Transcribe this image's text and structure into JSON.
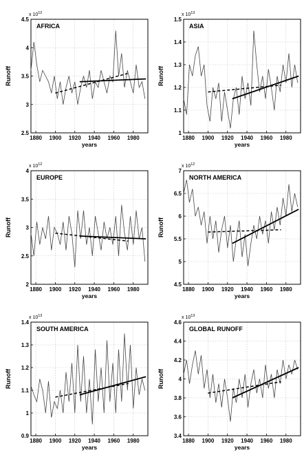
{
  "chart_data": [
    {
      "type": "line",
      "title": "AFRICA",
      "xlabel": "years",
      "ylabel": "Runoff",
      "multiplier": "x 10",
      "exponent": "12",
      "xlim": [
        1875,
        1995
      ],
      "ylim": [
        2.5,
        4.5
      ],
      "xticks": [
        1880,
        1900,
        1920,
        1940,
        1960,
        1980
      ],
      "yticks": [
        "2.5",
        "3",
        "3.5",
        "4",
        "4.5"
      ],
      "series_points": [
        [
          1875,
          3.6
        ],
        [
          1878,
          4.1
        ],
        [
          1881,
          3.7
        ],
        [
          1884,
          3.4
        ],
        [
          1887,
          3.6
        ],
        [
          1890,
          3.5
        ],
        [
          1893,
          3.4
        ],
        [
          1896,
          3.2
        ],
        [
          1899,
          3.5
        ],
        [
          1902,
          3.1
        ],
        [
          1905,
          3.4
        ],
        [
          1908,
          3.0
        ],
        [
          1911,
          3.3
        ],
        [
          1914,
          3.5
        ],
        [
          1917,
          3.2
        ],
        [
          1920,
          3.4
        ],
        [
          1923,
          3.0
        ],
        [
          1926,
          3.3
        ],
        [
          1929,
          3.5
        ],
        [
          1932,
          3.3
        ],
        [
          1935,
          3.6
        ],
        [
          1938,
          3.1
        ],
        [
          1941,
          3.4
        ],
        [
          1944,
          3.3
        ],
        [
          1947,
          3.6
        ],
        [
          1950,
          3.4
        ],
        [
          1953,
          3.2
        ],
        [
          1956,
          3.5
        ],
        [
          1959,
          3.4
        ],
        [
          1962,
          4.3
        ],
        [
          1965,
          3.5
        ],
        [
          1968,
          3.9
        ],
        [
          1971,
          3.3
        ],
        [
          1974,
          3.6
        ],
        [
          1977,
          3.4
        ],
        [
          1980,
          3.2
        ],
        [
          1983,
          3.7
        ],
        [
          1986,
          3.3
        ],
        [
          1989,
          3.4
        ],
        [
          1992,
          3.1
        ]
      ],
      "trend_dashed": [
        [
          1900,
          3.2
        ],
        [
          1975,
          3.55
        ]
      ],
      "trend_solid": [
        [
          1925,
          3.4
        ],
        [
          1993,
          3.45
        ]
      ]
    },
    {
      "type": "line",
      "title": "ASIA",
      "xlabel": "years",
      "ylabel": "Runoff",
      "multiplier": "x 10",
      "exponent": "13",
      "xlim": [
        1875,
        1995
      ],
      "ylim": [
        1,
        1.5
      ],
      "xticks": [
        1880,
        1900,
        1920,
        1940,
        1960,
        1980
      ],
      "yticks": [
        "1",
        "1.1",
        "1.2",
        "1.3",
        "1.4",
        "1.5"
      ],
      "series_points": [
        [
          1875,
          1.15
        ],
        [
          1878,
          1.08
        ],
        [
          1881,
          1.3
        ],
        [
          1884,
          1.25
        ],
        [
          1887,
          1.34
        ],
        [
          1890,
          1.38
        ],
        [
          1893,
          1.25
        ],
        [
          1896,
          1.3
        ],
        [
          1899,
          1.12
        ],
        [
          1902,
          1.05
        ],
        [
          1905,
          1.2
        ],
        [
          1908,
          1.15
        ],
        [
          1911,
          1.22
        ],
        [
          1914,
          1.05
        ],
        [
          1917,
          1.18
        ],
        [
          1920,
          1.1
        ],
        [
          1923,
          1.02
        ],
        [
          1926,
          1.15
        ],
        [
          1929,
          1.2
        ],
        [
          1932,
          1.08
        ],
        [
          1935,
          1.25
        ],
        [
          1938,
          1.15
        ],
        [
          1941,
          1.22
        ],
        [
          1944,
          1.12
        ],
        [
          1947,
          1.45
        ],
        [
          1950,
          1.3
        ],
        [
          1953,
          1.18
        ],
        [
          1956,
          1.25
        ],
        [
          1959,
          1.15
        ],
        [
          1962,
          1.28
        ],
        [
          1965,
          1.2
        ],
        [
          1968,
          1.1
        ],
        [
          1971,
          1.25
        ],
        [
          1974,
          1.18
        ],
        [
          1977,
          1.3
        ],
        [
          1980,
          1.22
        ],
        [
          1983,
          1.35
        ],
        [
          1986,
          1.2
        ],
        [
          1989,
          1.3
        ],
        [
          1992,
          1.22
        ]
      ],
      "trend_dashed": [
        [
          1900,
          1.18
        ],
        [
          1975,
          1.21
        ]
      ],
      "trend_solid": [
        [
          1925,
          1.15
        ],
        [
          1993,
          1.25
        ]
      ]
    },
    {
      "type": "line",
      "title": "EUROPE",
      "xlabel": "years",
      "ylabel": "Runoff",
      "multiplier": "x 10",
      "exponent": "12",
      "xlim": [
        1875,
        1995
      ],
      "ylim": [
        2,
        4
      ],
      "xticks": [
        1880,
        1900,
        1920,
        1940,
        1960,
        1980
      ],
      "yticks": [
        "2",
        "2.5",
        "3",
        "3.5",
        "4"
      ],
      "series_points": [
        [
          1875,
          2.9
        ],
        [
          1878,
          2.5
        ],
        [
          1881,
          3.1
        ],
        [
          1884,
          2.7
        ],
        [
          1887,
          3.0
        ],
        [
          1890,
          2.8
        ],
        [
          1893,
          3.2
        ],
        [
          1896,
          2.6
        ],
        [
          1899,
          3.0
        ],
        [
          1902,
          2.9
        ],
        [
          1905,
          2.7
        ],
        [
          1908,
          3.1
        ],
        [
          1911,
          2.6
        ],
        [
          1914,
          3.2
        ],
        [
          1917,
          2.9
        ],
        [
          1920,
          2.3
        ],
        [
          1923,
          3.3
        ],
        [
          1926,
          2.8
        ],
        [
          1929,
          3.3
        ],
        [
          1932,
          2.7
        ],
        [
          1935,
          3.0
        ],
        [
          1938,
          2.5
        ],
        [
          1941,
          3.2
        ],
        [
          1944,
          2.9
        ],
        [
          1947,
          2.6
        ],
        [
          1950,
          3.1
        ],
        [
          1953,
          2.8
        ],
        [
          1956,
          3.0
        ],
        [
          1959,
          2.7
        ],
        [
          1962,
          3.2
        ],
        [
          1965,
          2.5
        ],
        [
          1968,
          3.4
        ],
        [
          1971,
          2.9
        ],
        [
          1974,
          2.6
        ],
        [
          1977,
          3.2
        ],
        [
          1980,
          2.7
        ],
        [
          1983,
          3.3
        ],
        [
          1986,
          2.8
        ],
        [
          1989,
          3.0
        ],
        [
          1992,
          2.4
        ]
      ],
      "trend_dashed": [
        [
          1900,
          2.9
        ],
        [
          1975,
          2.76
        ]
      ],
      "trend_solid": [
        [
          1925,
          2.85
        ],
        [
          1993,
          2.8
        ]
      ]
    },
    {
      "type": "line",
      "title": "NORTH AMERICA",
      "xlabel": "years",
      "ylabel": "Runoff",
      "multiplier": "x 10",
      "exponent": "12",
      "xlim": [
        1875,
        1995
      ],
      "ylim": [
        4.5,
        7
      ],
      "xticks": [
        1880,
        1900,
        1920,
        1940,
        1960,
        1980
      ],
      "yticks": [
        "4.5",
        "5",
        "5.5",
        "6",
        "6.5",
        "7"
      ],
      "series_points": [
        [
          1875,
          6.5
        ],
        [
          1878,
          6.8
        ],
        [
          1881,
          6.3
        ],
        [
          1884,
          6.6
        ],
        [
          1887,
          6.0
        ],
        [
          1890,
          6.2
        ],
        [
          1893,
          5.8
        ],
        [
          1896,
          6.1
        ],
        [
          1899,
          5.4
        ],
        [
          1902,
          6.0
        ],
        [
          1905,
          5.5
        ],
        [
          1908,
          5.9
        ],
        [
          1911,
          5.2
        ],
        [
          1914,
          5.7
        ],
        [
          1917,
          6.0
        ],
        [
          1920,
          5.3
        ],
        [
          1923,
          5.8
        ],
        [
          1926,
          5.0
        ],
        [
          1929,
          5.5
        ],
        [
          1932,
          5.9
        ],
        [
          1935,
          5.1
        ],
        [
          1938,
          5.6
        ],
        [
          1941,
          4.9
        ],
        [
          1944,
          5.4
        ],
        [
          1947,
          5.8
        ],
        [
          1950,
          5.5
        ],
        [
          1953,
          6.0
        ],
        [
          1956,
          5.6
        ],
        [
          1959,
          5.9
        ],
        [
          1962,
          5.4
        ],
        [
          1965,
          6.1
        ],
        [
          1968,
          5.7
        ],
        [
          1971,
          6.2
        ],
        [
          1974,
          5.8
        ],
        [
          1977,
          6.4
        ],
        [
          1980,
          6.0
        ],
        [
          1983,
          6.7
        ],
        [
          1986,
          6.1
        ],
        [
          1989,
          6.5
        ],
        [
          1992,
          6.2
        ]
      ],
      "trend_dashed": [
        [
          1900,
          5.65
        ],
        [
          1975,
          5.7
        ]
      ],
      "trend_solid": [
        [
          1925,
          5.4
        ],
        [
          1993,
          6.15
        ]
      ]
    },
    {
      "type": "line",
      "title": "SOUTH AMERICA",
      "xlabel": "years",
      "ylabel": "Runoff",
      "multiplier": "x 10",
      "exponent": "13",
      "xlim": [
        1875,
        1995
      ],
      "ylim": [
        0.9,
        1.4
      ],
      "xticks": [
        1880,
        1900,
        1920,
        1940,
        1960,
        1980
      ],
      "yticks": [
        "0.9",
        "1",
        "1.1",
        "1.2",
        "1.3",
        "1.4"
      ],
      "series_points": [
        [
          1875,
          1.12
        ],
        [
          1878,
          1.08
        ],
        [
          1881,
          1.05
        ],
        [
          1884,
          1.15
        ],
        [
          1887,
          1.1
        ],
        [
          1890,
          1.0
        ],
        [
          1893,
          1.14
        ],
        [
          1896,
          0.98
        ],
        [
          1899,
          1.05
        ],
        [
          1902,
          1.02
        ],
        [
          1905,
          1.1
        ],
        [
          1908,
          1.0
        ],
        [
          1911,
          1.18
        ],
        [
          1914,
          1.05
        ],
        [
          1917,
          1.22
        ],
        [
          1920,
          1.0
        ],
        [
          1923,
          1.3
        ],
        [
          1926,
          1.05
        ],
        [
          1929,
          1.25
        ],
        [
          1932,
          1.0
        ],
        [
          1935,
          1.15
        ],
        [
          1938,
          0.95
        ],
        [
          1941,
          1.28
        ],
        [
          1944,
          1.05
        ],
        [
          1947,
          1.2
        ],
        [
          1950,
          1.0
        ],
        [
          1953,
          1.32
        ],
        [
          1956,
          1.05
        ],
        [
          1959,
          1.22
        ],
        [
          1962,
          1.0
        ],
        [
          1965,
          1.28
        ],
        [
          1968,
          1.05
        ],
        [
          1971,
          1.35
        ],
        [
          1974,
          1.1
        ],
        [
          1977,
          1.3
        ],
        [
          1980,
          1.02
        ],
        [
          1983,
          1.2
        ],
        [
          1986,
          1.08
        ],
        [
          1989,
          1.15
        ],
        [
          1992,
          1.1
        ]
      ],
      "trend_dashed": [
        [
          1900,
          1.07
        ],
        [
          1975,
          1.13
        ]
      ],
      "trend_solid": [
        [
          1925,
          1.08
        ],
        [
          1993,
          1.16
        ]
      ]
    },
    {
      "type": "line",
      "title": "GLOBAL RUNOFF",
      "xlabel": "years",
      "ylabel": "Runoff",
      "multiplier": "x 10",
      "exponent": "13",
      "xlim": [
        1875,
        1995
      ],
      "ylim": [
        3.4,
        4.6
      ],
      "xticks": [
        1880,
        1900,
        1920,
        1940,
        1960,
        1980
      ],
      "yticks": [
        "3.4",
        "3.6",
        "3.8",
        "4",
        "4.2",
        "4.4",
        "4.6"
      ],
      "series_points": [
        [
          1875,
          4.05
        ],
        [
          1878,
          4.2
        ],
        [
          1881,
          3.95
        ],
        [
          1884,
          4.15
        ],
        [
          1887,
          4.3
        ],
        [
          1890,
          4.05
        ],
        [
          1893,
          4.25
        ],
        [
          1896,
          3.9
        ],
        [
          1899,
          4.1
        ],
        [
          1902,
          3.8
        ],
        [
          1905,
          4.05
        ],
        [
          1908,
          3.75
        ],
        [
          1911,
          3.95
        ],
        [
          1914,
          3.7
        ],
        [
          1917,
          4.0
        ],
        [
          1920,
          3.8
        ],
        [
          1923,
          3.55
        ],
        [
          1926,
          3.9
        ],
        [
          1929,
          3.75
        ],
        [
          1932,
          4.0
        ],
        [
          1935,
          3.8
        ],
        [
          1938,
          4.05
        ],
        [
          1941,
          3.7
        ],
        [
          1944,
          3.95
        ],
        [
          1947,
          4.1
        ],
        [
          1950,
          3.85
        ],
        [
          1953,
          4.0
        ],
        [
          1956,
          3.8
        ],
        [
          1959,
          4.15
        ],
        [
          1962,
          3.9
        ],
        [
          1965,
          4.05
        ],
        [
          1968,
          3.8
        ],
        [
          1971,
          4.1
        ],
        [
          1974,
          3.95
        ],
        [
          1977,
          4.2
        ],
        [
          1980,
          4.0
        ],
        [
          1983,
          4.15
        ],
        [
          1986,
          4.05
        ],
        [
          1989,
          4.2
        ],
        [
          1992,
          4.1
        ]
      ],
      "trend_dashed": [
        [
          1900,
          3.85
        ],
        [
          1975,
          3.97
        ]
      ],
      "trend_solid": [
        [
          1925,
          3.8
        ],
        [
          1993,
          4.12
        ]
      ]
    }
  ]
}
